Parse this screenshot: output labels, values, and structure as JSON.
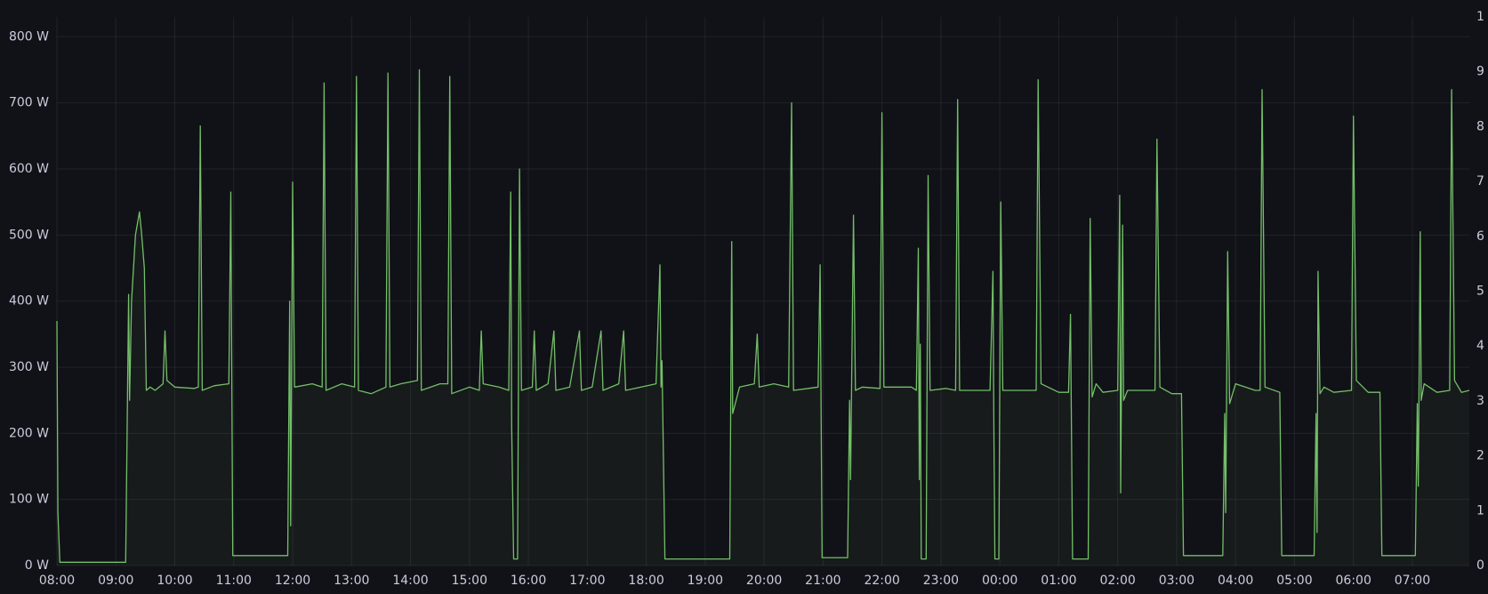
{
  "chart_data": {
    "type": "line",
    "color": "#73bf69",
    "fill": true,
    "grid": true,
    "x": [
      "08:00",
      "08:01",
      "08:03",
      "09:10",
      "09:13",
      "09:14",
      "09:16",
      "09:20",
      "09:24",
      "09:26",
      "09:29",
      "09:31",
      "09:35",
      "09:40",
      "09:48",
      "09:50",
      "09:52",
      "10:00",
      "10:20",
      "10:24",
      "10:26",
      "10:28",
      "10:40",
      "10:55",
      "10:57",
      "10:59",
      "11:55",
      "11:57",
      "11:58",
      "12:00",
      "12:02",
      "12:20",
      "12:30",
      "12:32",
      "12:34",
      "12:50",
      "13:03",
      "13:05",
      "13:07",
      "13:20",
      "13:35",
      "13:37",
      "13:39",
      "13:50",
      "14:07",
      "14:09",
      "14:11",
      "14:30",
      "14:38",
      "14:40",
      "14:42",
      "15:00",
      "15:10",
      "15:12",
      "15:14",
      "15:30",
      "15:40",
      "15:42",
      "15:43",
      "15:45",
      "15:49",
      "15:51",
      "15:53",
      "16:04",
      "16:06",
      "16:08",
      "16:20",
      "16:26",
      "16:28",
      "16:42",
      "16:52",
      "16:54",
      "17:05",
      "17:14",
      "17:16",
      "17:32",
      "17:37",
      "17:39",
      "18:10",
      "18:14",
      "18:15",
      "18:16",
      "18:19",
      "19:25",
      "19:27",
      "19:28",
      "19:35",
      "19:50",
      "19:53",
      "19:55",
      "20:10",
      "20:25",
      "20:28",
      "20:30",
      "20:45",
      "20:55",
      "20:57",
      "20:59",
      "21:25",
      "21:27",
      "21:28",
      "21:31",
      "21:33",
      "21:40",
      "21:58",
      "22:00",
      "22:02",
      "22:30",
      "22:35",
      "22:37",
      "22:38",
      "22:39",
      "22:40",
      "22:45",
      "22:47",
      "22:49",
      "23:05",
      "23:15",
      "23:17",
      "23:19",
      "23:50",
      "23:53",
      "23:54",
      "23:55",
      "23:59",
      "00:01",
      "00:03",
      "00:15",
      "00:37",
      "00:39",
      "00:42",
      "01:00",
      "01:10",
      "01:12",
      "01:14",
      "01:30",
      "01:32",
      "01:34",
      "01:38",
      "01:45",
      "02:00",
      "02:02",
      "02:03",
      "02:05",
      "02:06",
      "02:10",
      "02:38",
      "02:40",
      "02:43",
      "02:55",
      "03:05",
      "03:07",
      "03:47",
      "03:49",
      "03:50",
      "03:52",
      "03:54",
      "04:00",
      "04:20",
      "04:25",
      "04:27",
      "04:30",
      "04:45",
      "04:47",
      "05:20",
      "05:22",
      "05:23",
      "05:24",
      "05:26",
      "05:30",
      "05:40",
      "05:58",
      "06:00",
      "06:03",
      "06:15",
      "06:27",
      "06:29",
      "07:03",
      "07:05",
      "07:06",
      "07:08",
      "07:09",
      "07:12",
      "07:25",
      "07:38",
      "07:40",
      "07:43",
      "07:50",
      "07:58"
    ],
    "values": [
      370,
      80,
      5,
      5,
      410,
      250,
      400,
      500,
      535,
      505,
      450,
      265,
      270,
      265,
      275,
      355,
      280,
      270,
      268,
      270,
      665,
      265,
      272,
      275,
      565,
      15,
      15,
      400,
      60,
      580,
      270,
      275,
      270,
      730,
      265,
      275,
      270,
      740,
      265,
      260,
      270,
      745,
      270,
      275,
      280,
      750,
      265,
      275,
      275,
      740,
      260,
      270,
      265,
      355,
      275,
      270,
      265,
      565,
      210,
      10,
      10,
      600,
      265,
      270,
      355,
      265,
      275,
      355,
      265,
      270,
      355,
      265,
      270,
      355,
      265,
      275,
      355,
      265,
      275,
      455,
      270,
      310,
      10,
      10,
      490,
      230,
      270,
      275,
      350,
      270,
      275,
      270,
      700,
      265,
      268,
      270,
      455,
      12,
      12,
      250,
      130,
      530,
      265,
      270,
      268,
      685,
      270,
      270,
      265,
      480,
      130,
      335,
      10,
      10,
      590,
      265,
      268,
      265,
      705,
      265,
      265,
      445,
      200,
      10,
      10,
      550,
      265,
      265,
      265,
      735,
      275,
      262,
      262,
      380,
      10,
      10,
      525,
      255,
      275,
      262,
      265,
      560,
      110,
      515,
      250,
      265,
      265,
      645,
      270,
      260,
      260,
      15,
      15,
      230,
      80,
      475,
      245,
      275,
      265,
      265,
      720,
      270,
      262,
      15,
      15,
      230,
      50,
      445,
      260,
      270,
      262,
      265,
      680,
      280,
      262,
      262,
      15,
      15,
      245,
      120,
      505,
      250,
      275,
      262,
      265,
      720,
      280,
      262,
      265
    ],
    "xlim": [
      "08:00",
      "07:58"
    ],
    "xticks": [
      "08:00",
      "09:00",
      "10:00",
      "11:00",
      "12:00",
      "13:00",
      "14:00",
      "15:00",
      "16:00",
      "17:00",
      "18:00",
      "19:00",
      "20:00",
      "21:00",
      "22:00",
      "23:00",
      "00:00",
      "01:00",
      "02:00",
      "03:00",
      "04:00",
      "05:00",
      "06:00",
      "07:00"
    ],
    "ylim": [
      0,
      830
    ],
    "yticks": [
      {
        "value": 0,
        "label": "0 W"
      },
      {
        "value": 100,
        "label": "100 W"
      },
      {
        "value": 200,
        "label": "200 W"
      },
      {
        "value": 300,
        "label": "300 W"
      },
      {
        "value": 400,
        "label": "400 W"
      },
      {
        "value": 500,
        "label": "500 W"
      },
      {
        "value": 600,
        "label": "600 W"
      },
      {
        "value": 700,
        "label": "700 W"
      },
      {
        "value": 800,
        "label": "800 W"
      }
    ],
    "y2lim": [
      0,
      10
    ],
    "y2ticks": [
      0,
      1,
      2,
      3,
      4,
      5,
      6,
      7,
      8,
      9,
      {
        "value": 10,
        "label": "1"
      }
    ]
  }
}
